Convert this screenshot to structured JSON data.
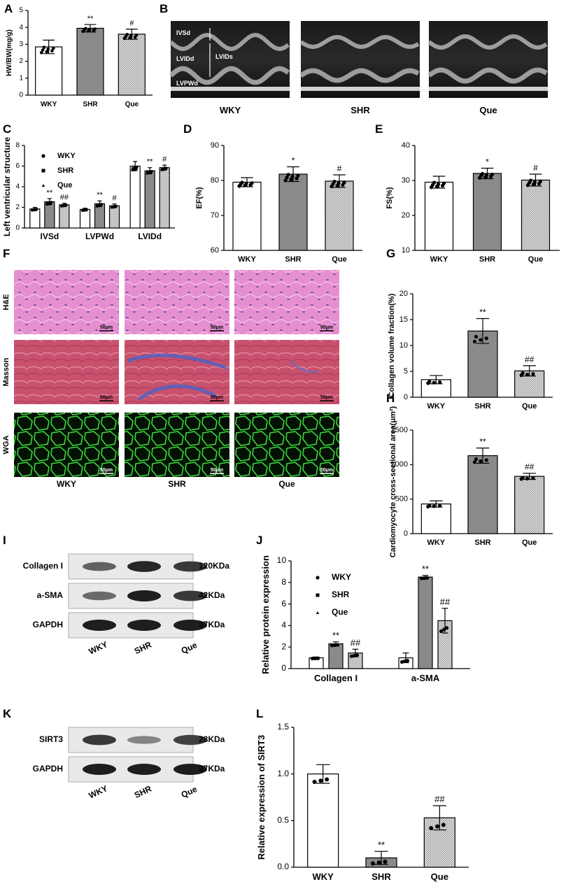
{
  "panels": {
    "A": "A",
    "B": "B",
    "C": "C",
    "D": "D",
    "E": "E",
    "F": "F",
    "G": "G",
    "H": "H",
    "I": "I",
    "J": "J",
    "K": "K",
    "L": "L"
  },
  "groups": [
    "WKY",
    "SHR",
    "Que"
  ],
  "echo": {
    "annotations": [
      "IVSd",
      "LVIDd",
      "LVIDs",
      "LVPWd"
    ]
  },
  "histology": {
    "rows": [
      "H&E",
      "Masson",
      "WGA"
    ],
    "scale_bar": "50μm"
  },
  "blots": {
    "I": {
      "rows": [
        {
          "label": "Collagen I",
          "kda": "120KDa",
          "intensity": [
            0.6,
            0.95,
            0.85
          ]
        },
        {
          "label": "a-SMA",
          "kda": "42KDa",
          "intensity": [
            0.55,
            1.0,
            0.85
          ]
        },
        {
          "label": "GAPDH",
          "kda": "37KDa",
          "intensity": [
            1.0,
            1.0,
            1.0
          ]
        }
      ]
    },
    "K": {
      "rows": [
        {
          "label": "SIRT3",
          "kda": "28KDa",
          "intensity": [
            0.85,
            0.4,
            0.8
          ]
        },
        {
          "label": "GAPDH",
          "kda": "37KDa",
          "intensity": [
            1.0,
            1.0,
            1.0
          ]
        }
      ]
    }
  },
  "colors": {
    "WKY": "#ffffff",
    "SHR": "#8a8a8a",
    "Que": "#d8d8d8",
    "axis": "#000000"
  },
  "chart_data": [
    {
      "id": "A",
      "type": "bar",
      "categories": [
        "WKY",
        "SHR",
        "Que"
      ],
      "values": [
        2.85,
        3.95,
        3.6
      ],
      "errors": [
        0.4,
        0.22,
        0.3
      ],
      "significance": [
        "",
        "**",
        "#"
      ],
      "ylabel": "HW/BW(mg/g)",
      "ylim": [
        0,
        5
      ],
      "yticks": [
        0,
        1,
        2,
        3,
        4,
        5
      ]
    },
    {
      "id": "C",
      "type": "bar",
      "categories": [
        "IVSd",
        "LVPWd",
        "LVIDd"
      ],
      "series": [
        {
          "name": "WKY",
          "values": [
            1.85,
            1.8,
            6.0
          ],
          "errors": [
            0.15,
            0.12,
            0.45
          ],
          "significance": [
            "",
            "",
            ""
          ]
        },
        {
          "name": "SHR",
          "values": [
            2.55,
            2.35,
            5.55
          ],
          "errors": [
            0.3,
            0.28,
            0.3
          ],
          "significance": [
            "**",
            "**",
            "**"
          ]
        },
        {
          "name": "Que",
          "values": [
            2.25,
            2.15,
            5.85
          ],
          "errors": [
            0.15,
            0.18,
            0.25
          ],
          "significance": [
            "##",
            "#",
            "#"
          ]
        }
      ],
      "ylabel": "Left ventricular structure",
      "ylim": [
        0,
        8
      ],
      "yticks": [
        0,
        2,
        4,
        6,
        8
      ],
      "legend": "top-left"
    },
    {
      "id": "D",
      "type": "bar",
      "categories": [
        "WKY",
        "SHR",
        "Que"
      ],
      "values": [
        79.5,
        81.8,
        79.8
      ],
      "errors": [
        1.3,
        2.1,
        1.8
      ],
      "significance": [
        "",
        "*",
        "#"
      ],
      "ylabel": "EF(%)",
      "ylim": [
        60,
        90
      ],
      "yticks": [
        60,
        70,
        80,
        90
      ]
    },
    {
      "id": "E",
      "type": "bar",
      "categories": [
        "WKY",
        "SHR",
        "Que"
      ],
      "values": [
        29.5,
        32.0,
        30.1
      ],
      "errors": [
        1.7,
        1.5,
        1.7
      ],
      "significance": [
        "",
        "*",
        "#"
      ],
      "ylabel": "FS(%)",
      "ylim": [
        10,
        40
      ],
      "yticks": [
        10,
        20,
        30,
        40
      ]
    },
    {
      "id": "G",
      "type": "bar",
      "categories": [
        "WKY",
        "SHR",
        "Que"
      ],
      "values": [
        3.4,
        12.8,
        5.1
      ],
      "errors": [
        0.8,
        2.4,
        1.0
      ],
      "significance": [
        "",
        "**",
        "##"
      ],
      "ylabel": "Collagen volume fraction(%)",
      "ylim": [
        0,
        20
      ],
      "yticks": [
        0,
        5,
        10,
        15,
        20
      ]
    },
    {
      "id": "H",
      "type": "bar",
      "categories": [
        "WKY",
        "SHR",
        "Que"
      ],
      "values": [
        430,
        1130,
        830
      ],
      "errors": [
        45,
        110,
        45
      ],
      "significance": [
        "",
        "**",
        "##"
      ],
      "ylabel": "Cardiomyocyte cross-sectional area(μm²)",
      "ylim": [
        0,
        1500
      ],
      "yticks": [
        0,
        500,
        1000,
        1500
      ]
    },
    {
      "id": "J",
      "type": "bar",
      "categories": [
        "Collagen I",
        "a-SMA"
      ],
      "series": [
        {
          "name": "WKY",
          "values": [
            1.0,
            1.0
          ],
          "errors": [
            0.08,
            0.45
          ],
          "significance": [
            "",
            ""
          ]
        },
        {
          "name": "SHR",
          "values": [
            2.3,
            8.5
          ],
          "errors": [
            0.18,
            0.15
          ],
          "significance": [
            "**",
            "**"
          ]
        },
        {
          "name": "Que",
          "values": [
            1.45,
            4.45
          ],
          "errors": [
            0.35,
            1.15
          ],
          "significance": [
            "##",
            "##"
          ]
        }
      ],
      "ylabel": "Relative protein expression",
      "ylim": [
        0,
        10
      ],
      "yticks": [
        0,
        2,
        4,
        6,
        8,
        10
      ],
      "legend": "top-left"
    },
    {
      "id": "L",
      "type": "bar",
      "categories": [
        "WKY",
        "SHR",
        "Que"
      ],
      "values": [
        1.0,
        0.1,
        0.53
      ],
      "errors": [
        0.1,
        0.07,
        0.13
      ],
      "significance": [
        "",
        "**",
        "##"
      ],
      "ylabel": "Relative expression of SIRT3",
      "ylim": [
        0,
        1.5
      ],
      "yticks": [
        0.0,
        0.5,
        1.0,
        1.5
      ]
    }
  ]
}
